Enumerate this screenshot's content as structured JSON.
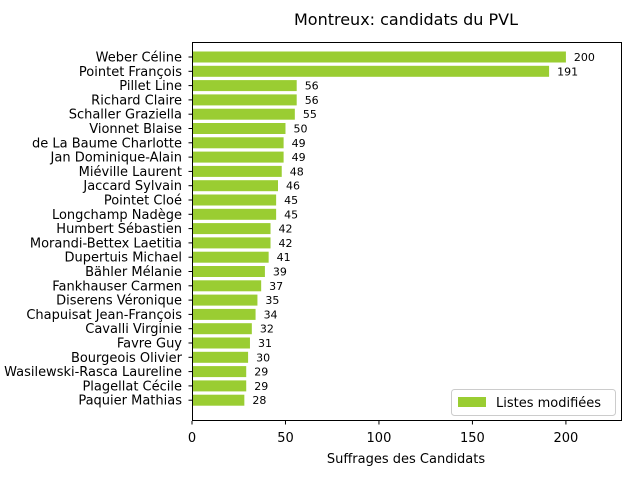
{
  "chart_data": {
    "type": "bar",
    "orientation": "horizontal",
    "title": "Montreux: candidats du PVL",
    "xlabel": "Suffrages des Candidats",
    "ylabel": "",
    "xlim": [
      0,
      230
    ],
    "xticks": [
      0,
      50,
      100,
      150,
      200
    ],
    "grid": false,
    "legend_position": "bottom-right",
    "bar_color": "#9acd32",
    "categories": [
      "Weber Céline",
      "Pointet François",
      "Pillet Line",
      "Richard Claire",
      "Schaller Graziella",
      "Vionnet Blaise",
      "de La Baume Charlotte",
      "Jan Dominique-Alain",
      "Miéville Laurent",
      "Jaccard Sylvain",
      "Pointet Cloé",
      "Longchamp Nadège",
      "Humbert Sébastien",
      "Morandi-Bettex Laetitia",
      "Dupertuis Michael",
      "Bähler Mélanie",
      "Fankhauser Carmen",
      "Diserens Véronique",
      "Chapuisat Jean-François",
      "Cavalli Virginie",
      "Favre Guy",
      "Bourgeois Olivier",
      "Wasilewski-Rasca Laureline",
      "Plagellat Cécile",
      "Paquier Mathias"
    ],
    "series": [
      {
        "name": "Listes modifiées",
        "values": [
          200,
          191,
          56,
          56,
          55,
          50,
          49,
          49,
          48,
          46,
          45,
          45,
          42,
          42,
          41,
          39,
          37,
          35,
          34,
          32,
          31,
          30,
          29,
          29,
          28
        ]
      }
    ]
  }
}
